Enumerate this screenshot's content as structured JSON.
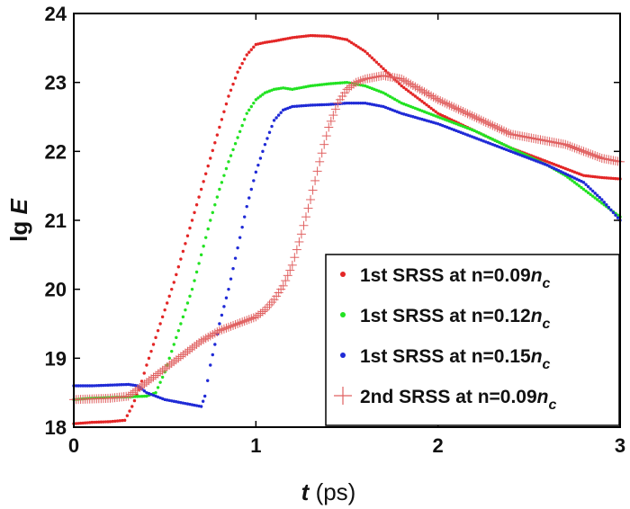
{
  "chart_data": {
    "type": "scatter",
    "x_label": {
      "italic": "t",
      "rest": "(ps)"
    },
    "y_label": {
      "plain": "lg",
      "italic": "E"
    },
    "xlim": [
      0,
      3
    ],
    "ylim": [
      18,
      24
    ],
    "x_ticks": [
      "0",
      "1",
      "2",
      "3"
    ],
    "y_ticks": [
      "18",
      "19",
      "20",
      "21",
      "22",
      "23",
      "24"
    ],
    "grid": false,
    "legend_position": "bottom-right",
    "series": [
      {
        "name": "1st SRSS at n=0.09",
        "name_suffix": "n",
        "name_sub": "c",
        "color": "#e32626",
        "marker": "dot",
        "x": [
          0,
          0.1,
          0.2,
          0.28,
          0.32,
          0.36,
          0.4,
          0.45,
          0.5,
          0.55,
          0.6,
          0.65,
          0.7,
          0.75,
          0.8,
          0.85,
          0.9,
          0.95,
          1.0,
          1.05,
          1.1,
          1.2,
          1.3,
          1.4,
          1.5,
          1.6,
          1.7,
          1.8,
          1.9,
          2.0,
          2.2,
          2.4,
          2.6,
          2.8,
          2.9,
          3.0
        ],
        "y": [
          18.05,
          18.07,
          18.08,
          18.1,
          18.3,
          18.55,
          18.9,
          19.3,
          19.7,
          20.1,
          20.55,
          21.0,
          21.45,
          21.9,
          22.35,
          22.8,
          23.15,
          23.4,
          23.55,
          23.58,
          23.6,
          23.65,
          23.68,
          23.67,
          23.62,
          23.45,
          23.2,
          22.95,
          22.75,
          22.55,
          22.3,
          22.05,
          21.85,
          21.65,
          21.62,
          21.6
        ]
      },
      {
        "name": "1st SRSS at n=0.12",
        "name_suffix": "n",
        "name_sub": "c",
        "color": "#22e222",
        "marker": "dot",
        "x": [
          0,
          0.1,
          0.2,
          0.3,
          0.4,
          0.45,
          0.5,
          0.55,
          0.6,
          0.65,
          0.7,
          0.75,
          0.8,
          0.85,
          0.9,
          0.95,
          1.0,
          1.05,
          1.1,
          1.15,
          1.2,
          1.3,
          1.4,
          1.5,
          1.6,
          1.7,
          1.8,
          2.0,
          2.2,
          2.4,
          2.6,
          2.7,
          2.8,
          2.9,
          3.0
        ],
        "y": [
          18.4,
          18.42,
          18.43,
          18.44,
          18.45,
          18.5,
          18.8,
          19.2,
          19.6,
          20.0,
          20.5,
          21.0,
          21.45,
          21.85,
          22.2,
          22.55,
          22.75,
          22.85,
          22.9,
          22.92,
          22.9,
          22.95,
          22.98,
          23.0,
          22.95,
          22.85,
          22.7,
          22.5,
          22.3,
          22.05,
          21.8,
          21.65,
          21.45,
          21.25,
          21.05
        ]
      },
      {
        "name": "1st SRSS at n=0.15",
        "name_suffix": "n",
        "name_sub": "c",
        "color": "#1f2ad6",
        "marker": "dot",
        "x": [
          0,
          0.1,
          0.2,
          0.3,
          0.35,
          0.4,
          0.5,
          0.6,
          0.7,
          0.72,
          0.75,
          0.8,
          0.85,
          0.9,
          0.95,
          1.0,
          1.05,
          1.1,
          1.15,
          1.2,
          1.3,
          1.4,
          1.5,
          1.6,
          1.7,
          1.8,
          2.0,
          2.2,
          2.4,
          2.6,
          2.8,
          2.9,
          3.0
        ],
        "y": [
          18.6,
          18.6,
          18.61,
          18.62,
          18.6,
          18.5,
          18.4,
          18.35,
          18.3,
          18.45,
          18.9,
          19.5,
          20.0,
          20.6,
          21.2,
          21.7,
          22.1,
          22.45,
          22.6,
          22.65,
          22.67,
          22.68,
          22.7,
          22.7,
          22.65,
          22.55,
          22.4,
          22.2,
          22.0,
          21.8,
          21.55,
          21.3,
          21.0
        ]
      },
      {
        "name": "2nd SRSS at n=0.09",
        "name_suffix": "n",
        "name_sub": "c",
        "color": "#e06060",
        "marker": "plus",
        "x": [
          0,
          0.1,
          0.2,
          0.3,
          0.35,
          0.4,
          0.5,
          0.6,
          0.7,
          0.8,
          0.9,
          1.0,
          1.05,
          1.1,
          1.15,
          1.2,
          1.25,
          1.3,
          1.35,
          1.4,
          1.45,
          1.5,
          1.55,
          1.6,
          1.7,
          1.8,
          1.9,
          2.0,
          2.2,
          2.4,
          2.5,
          2.6,
          2.7,
          2.8,
          2.9,
          3.0
        ],
        "y": [
          18.4,
          18.41,
          18.42,
          18.45,
          18.55,
          18.65,
          18.85,
          19.05,
          19.25,
          19.4,
          19.5,
          19.6,
          19.7,
          19.85,
          20.05,
          20.35,
          20.8,
          21.3,
          21.85,
          22.35,
          22.7,
          22.9,
          23.0,
          23.05,
          23.1,
          23.05,
          22.9,
          22.75,
          22.5,
          22.25,
          22.2,
          22.15,
          22.1,
          22.0,
          21.9,
          21.85
        ]
      }
    ]
  }
}
